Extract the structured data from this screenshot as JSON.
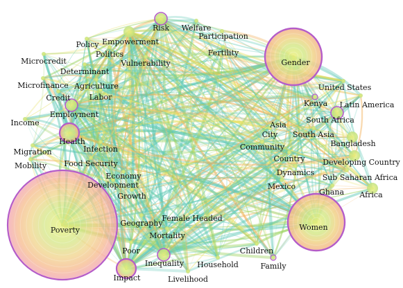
{
  "palette": {
    "edge_teal": "#5ec9b6",
    "edge_green": "#9fd464",
    "edge_orange": "#f2b05a",
    "edge_yellow": "#e6df62",
    "ring_purple": "#b45cc8",
    "core_yellow": "#eef07a",
    "mid_green": "#cfe58a",
    "outer_orange": "#f6c28a",
    "outer_pink": "#f3a6b0"
  },
  "nodes": [
    {
      "id": "poverty",
      "label": "Poverty",
      "size": "xl",
      "ring": true
    },
    {
      "id": "gender",
      "label": "Gender",
      "size": "l",
      "ring": true
    },
    {
      "id": "women",
      "label": "Women",
      "size": "l",
      "ring": true
    },
    {
      "id": "health",
      "label": "Health",
      "size": "s",
      "ring": true
    },
    {
      "id": "risk",
      "label": "Risk",
      "size": "xs",
      "ring": true
    },
    {
      "id": "empowerment",
      "label": "Empowerment",
      "size": "xs",
      "ring": false
    },
    {
      "id": "welfare",
      "label": "Welfare",
      "size": "xxs",
      "ring": false
    },
    {
      "id": "participation",
      "label": "Participation",
      "size": "xxs",
      "ring": false
    },
    {
      "id": "policy",
      "label": "Policy",
      "size": "xxs",
      "ring": false
    },
    {
      "id": "politics",
      "label": "Politics",
      "size": "xxs",
      "ring": false
    },
    {
      "id": "fertility",
      "label": "Fertility",
      "size": "xxs",
      "ring": false
    },
    {
      "id": "vulnerability",
      "label": "Vulnerability",
      "size": "xxs",
      "ring": false
    },
    {
      "id": "microcredit",
      "label": "Microcredit",
      "size": "xxs",
      "ring": false
    },
    {
      "id": "determinant",
      "label": "Determinant",
      "size": "xxs",
      "ring": false
    },
    {
      "id": "microfinance",
      "label": "Microfinance",
      "size": "xxs",
      "ring": false
    },
    {
      "id": "agriculture",
      "label": "Agriculture",
      "size": "xxs",
      "ring": false
    },
    {
      "id": "credit",
      "label": "Credit",
      "size": "xxs",
      "ring": false
    },
    {
      "id": "labor",
      "label": "Labor",
      "size": "xxs",
      "ring": false
    },
    {
      "id": "employment",
      "label": "Employment",
      "size": "xs",
      "ring": true
    },
    {
      "id": "income",
      "label": "Income",
      "size": "xxs",
      "ring": false
    },
    {
      "id": "infection",
      "label": "Infection",
      "size": "xxs",
      "ring": false
    },
    {
      "id": "migration",
      "label": "Migration",
      "size": "xxs",
      "ring": false
    },
    {
      "id": "food_security",
      "label": "Food Security",
      "size": "xxs",
      "ring": false
    },
    {
      "id": "mobility",
      "label": "Mobility",
      "size": "xxs",
      "ring": false
    },
    {
      "id": "economy",
      "label": "Economy",
      "size": "xxs",
      "ring": false
    },
    {
      "id": "development",
      "label": "Development",
      "size": "xxs",
      "ring": false
    },
    {
      "id": "growth",
      "label": "Growth",
      "size": "xxs",
      "ring": false
    },
    {
      "id": "united_states",
      "label": "United States",
      "size": "xxs",
      "ring": false
    },
    {
      "id": "kenya",
      "label": "Kenya",
      "size": "xxs",
      "ring": true
    },
    {
      "id": "latin_america",
      "label": "Latin America",
      "size": "xxs",
      "ring": false
    },
    {
      "id": "south_africa",
      "label": "South Africa",
      "size": "xs",
      "ring": true
    },
    {
      "id": "asia",
      "label": "Asia",
      "size": "xxs",
      "ring": false
    },
    {
      "id": "city",
      "label": "City",
      "size": "xxs",
      "ring": false
    },
    {
      "id": "south_asia",
      "label": "South Asia",
      "size": "xxs",
      "ring": false
    },
    {
      "id": "community",
      "label": "Community",
      "size": "xxs",
      "ring": false
    },
    {
      "id": "bangladesh",
      "label": "Bangladesh",
      "size": "xs",
      "ring": false
    },
    {
      "id": "country",
      "label": "Country",
      "size": "xxs",
      "ring": false
    },
    {
      "id": "developing_country",
      "label": "Developing Country",
      "size": "xs",
      "ring": false
    },
    {
      "id": "dynamics",
      "label": "Dynamics",
      "size": "xxs",
      "ring": false
    },
    {
      "id": "sub_saharan_africa",
      "label": "Sub Saharan Africa",
      "size": "xxs",
      "ring": false
    },
    {
      "id": "mexico",
      "label": "Mexico",
      "size": "xxs",
      "ring": false
    },
    {
      "id": "ghana",
      "label": "Ghana",
      "size": "xxs",
      "ring": false
    },
    {
      "id": "africa",
      "label": "Africa",
      "size": "xs",
      "ring": false
    },
    {
      "id": "geography",
      "label": "Geography",
      "size": "xxs",
      "ring": false
    },
    {
      "id": "female_headed",
      "label": "Female Headed",
      "size": "xxs",
      "ring": false
    },
    {
      "id": "mortality",
      "label": "Mortality",
      "size": "xxs",
      "ring": false
    },
    {
      "id": "poor",
      "label": "Poor",
      "size": "xxs",
      "ring": false
    },
    {
      "id": "inequality",
      "label": "Inequality",
      "size": "xs",
      "ring": true
    },
    {
      "id": "household",
      "label": "Household",
      "size": "xxs",
      "ring": false
    },
    {
      "id": "children",
      "label": "Children",
      "size": "xxs",
      "ring": false
    },
    {
      "id": "family",
      "label": "Family",
      "size": "xxs",
      "ring": true
    },
    {
      "id": "impact",
      "label": "Impact",
      "size": "s",
      "ring": true
    },
    {
      "id": "livelihood",
      "label": "Livelihood",
      "size": "xxs",
      "ring": false
    }
  ]
}
